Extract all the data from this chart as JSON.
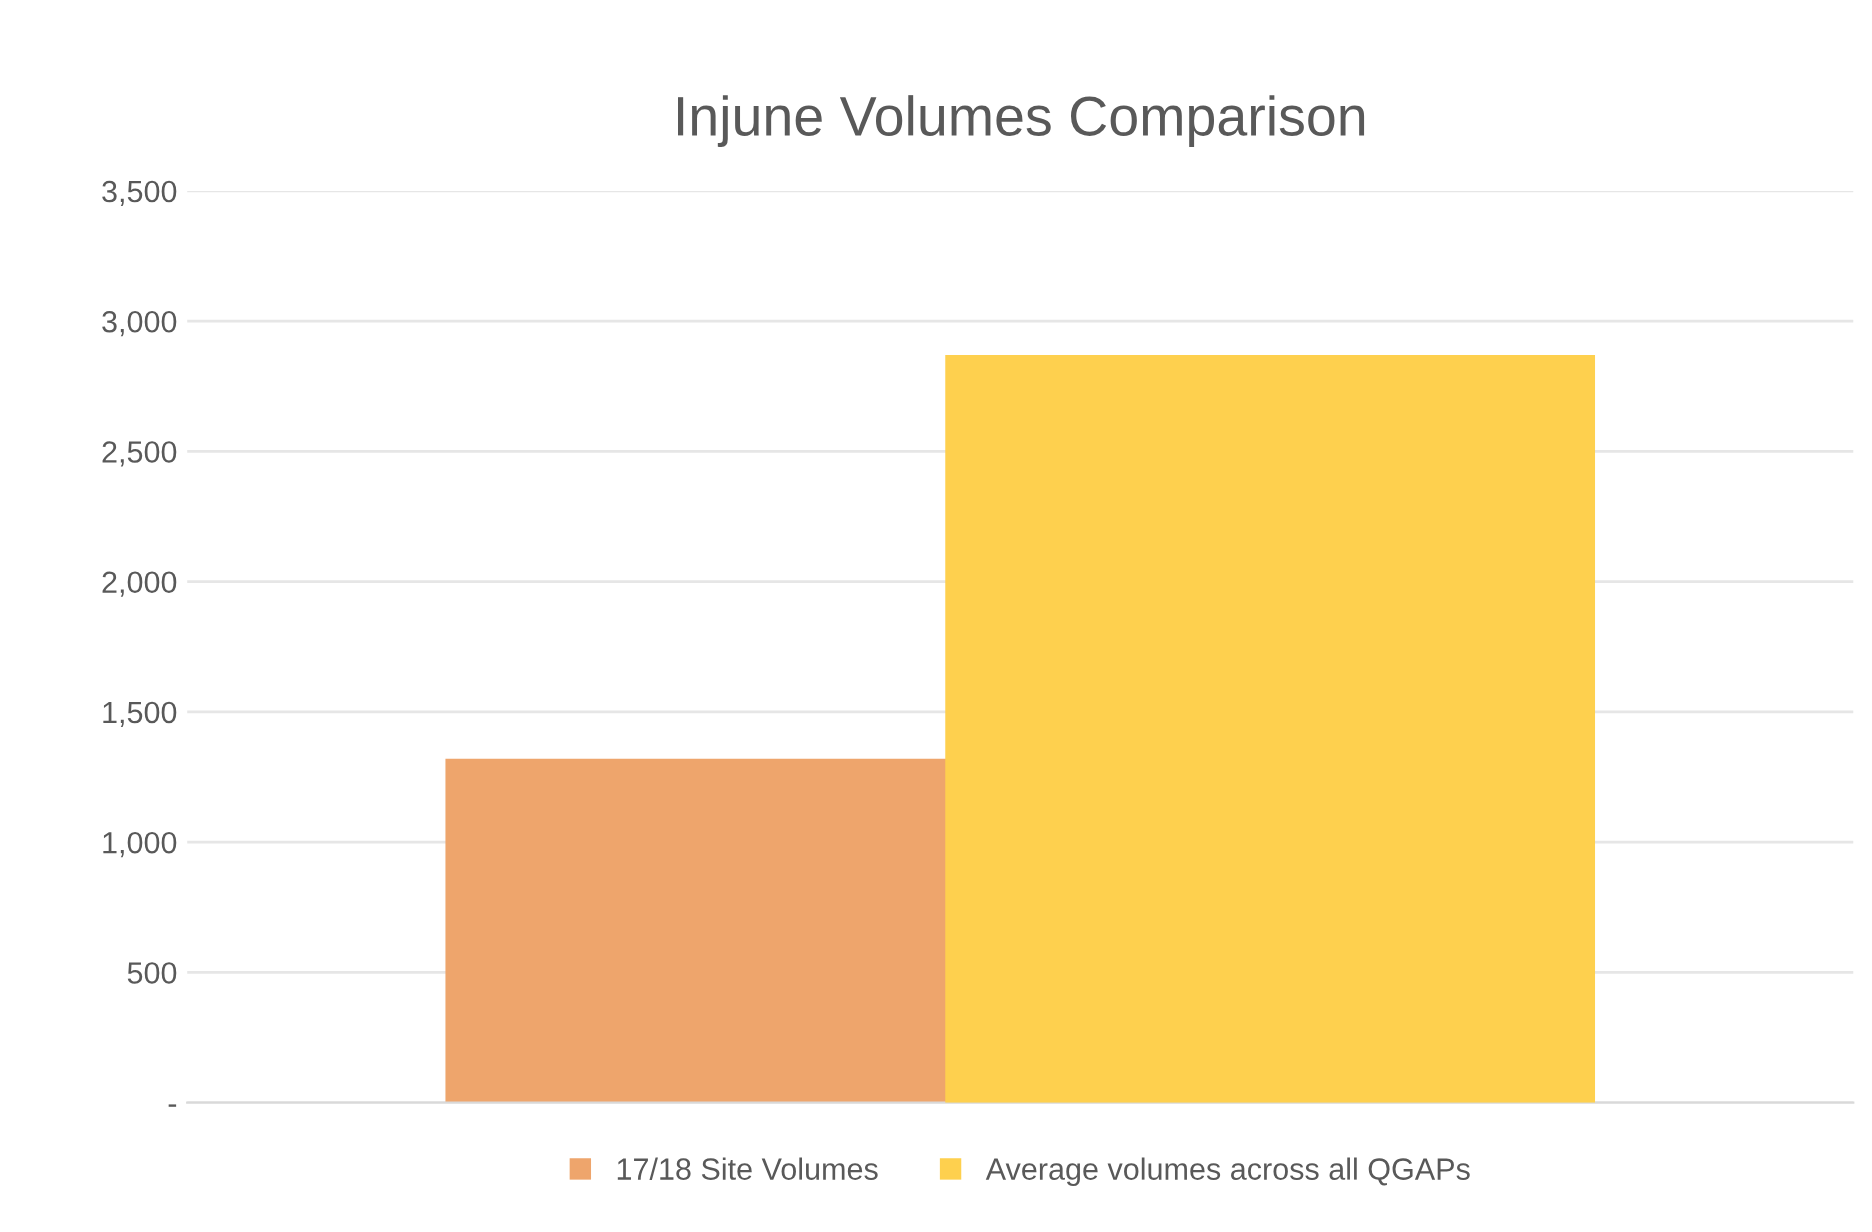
{
  "chart_data": {
    "type": "bar",
    "title": "Injune Volumes Comparison",
    "categories": [
      null
    ],
    "series": [
      {
        "name": "17/18 Site Volumes",
        "color": "#eea56c",
        "values": [
          1320
        ]
      },
      {
        "name": "Average volumes across all QGAPs",
        "color": "#fed04e",
        "values": [
          2870
        ]
      }
    ],
    "ylim": [
      0,
      3500
    ],
    "yticks": [
      {
        "value": 0,
        "label": "-"
      },
      {
        "value": 500,
        "label": "500"
      },
      {
        "value": 1000,
        "label": "1,000"
      },
      {
        "value": 1500,
        "label": "1,500"
      },
      {
        "value": 2000,
        "label": "2,000"
      },
      {
        "value": 2500,
        "label": "2,500"
      },
      {
        "value": 3000,
        "label": "3,000"
      },
      {
        "value": 3500,
        "label": "3,500"
      }
    ],
    "grid": "y",
    "legend": "bottom"
  }
}
